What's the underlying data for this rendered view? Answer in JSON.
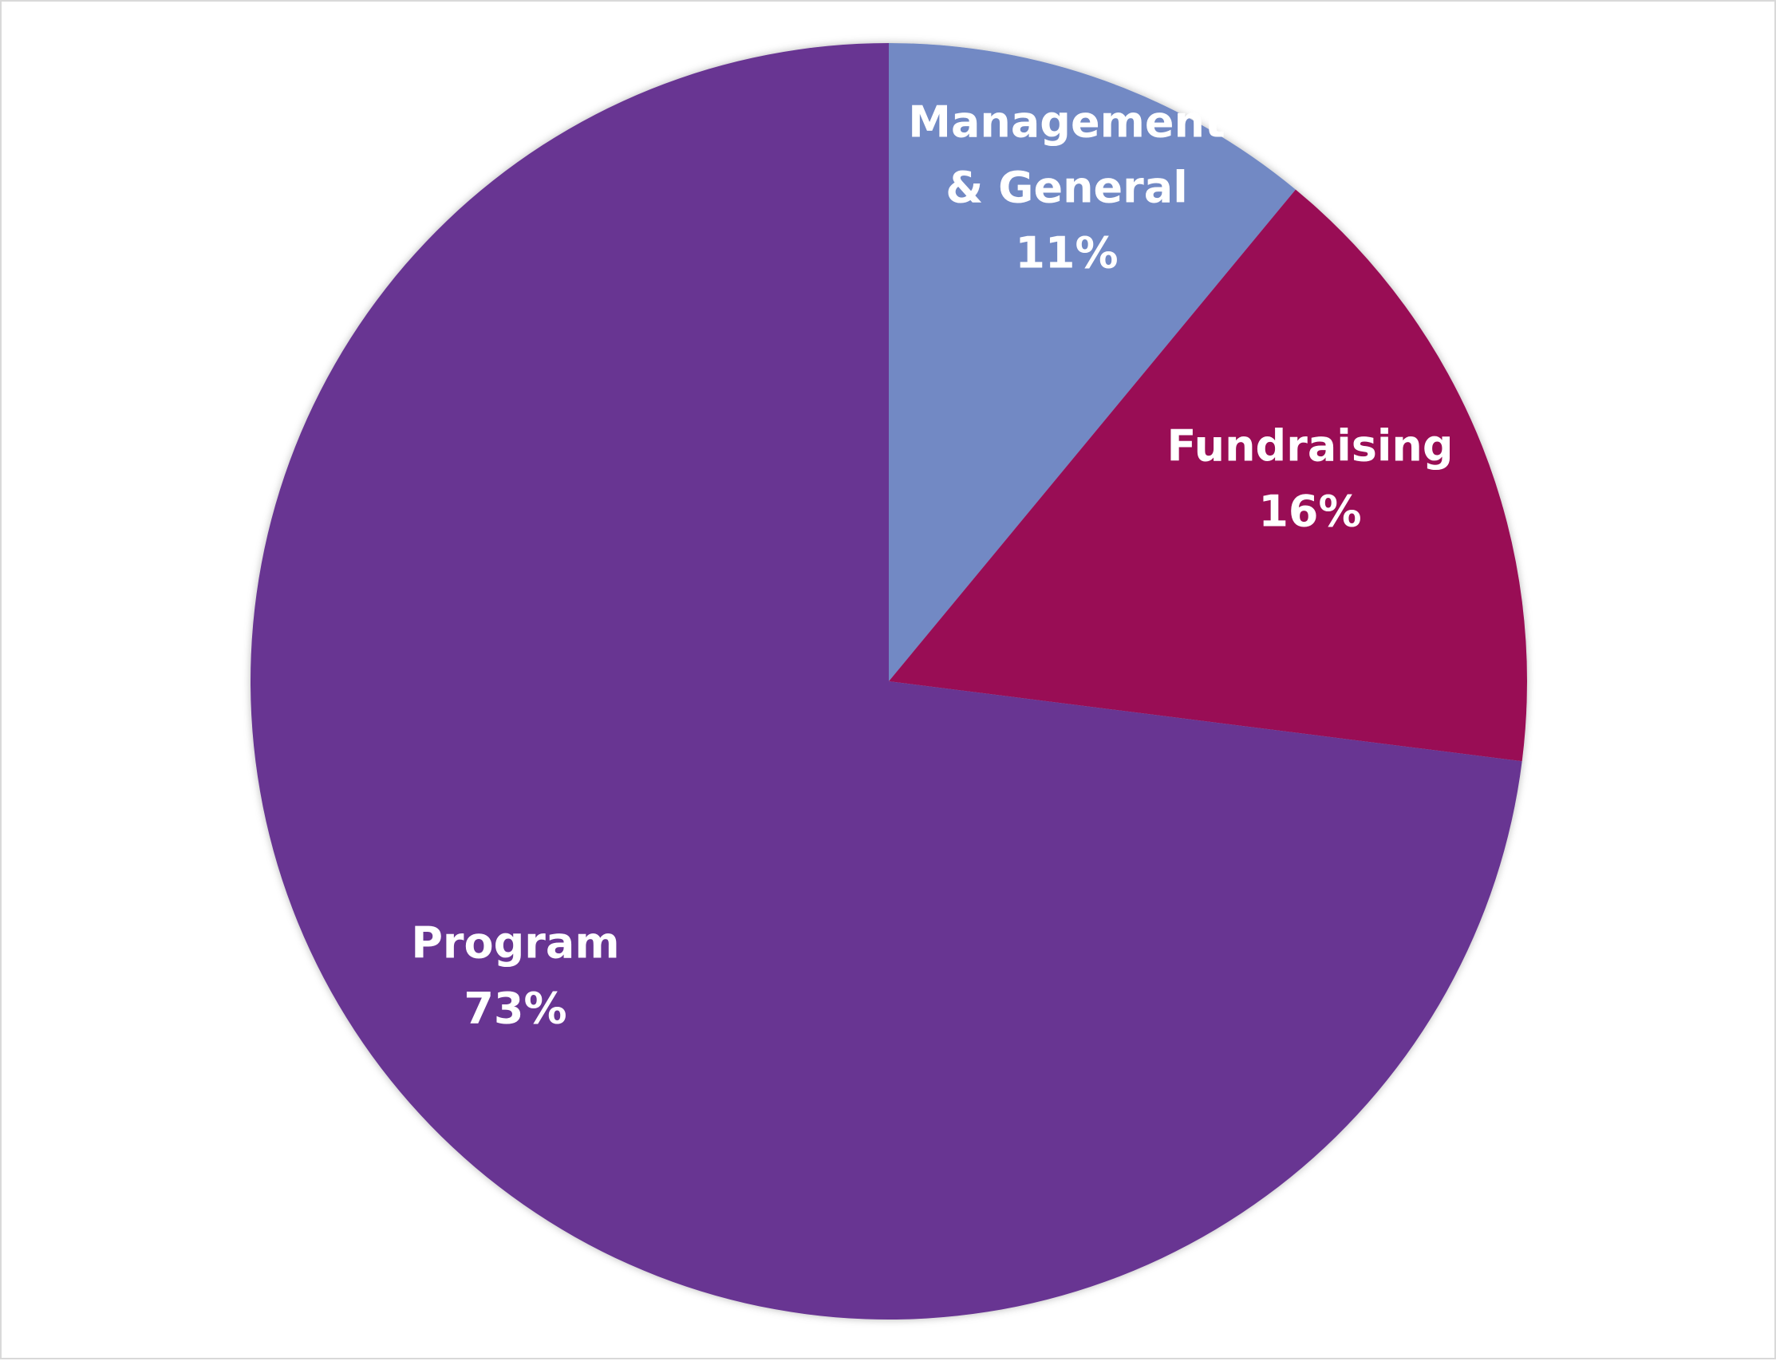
{
  "chart_data": {
    "type": "pie",
    "title": "",
    "categories": [
      "Management & General",
      "Fundraising",
      "Program"
    ],
    "values": [
      11,
      16,
      73
    ],
    "unit": "%",
    "label_lines": [
      [
        "Management",
        "& General",
        "11%"
      ],
      [
        "Fundraising",
        "16%"
      ],
      [
        "Program",
        "73%"
      ]
    ],
    "colors": [
      "#7289C4",
      "#990A55",
      "#673592"
    ],
    "start_angle_deg": 0,
    "direction": "clockwise",
    "legend": "none",
    "data_labels": "inside"
  }
}
